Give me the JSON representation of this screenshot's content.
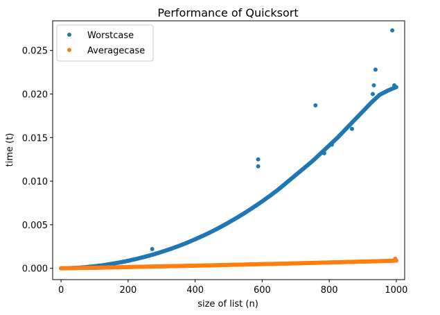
{
  "chart_data": {
    "type": "scatter",
    "title": "Performance of Quicksort",
    "xlabel": "size of list (n)",
    "ylabel": "time (t)",
    "xlim": [
      -25,
      1025
    ],
    "ylim": [
      -0.0013,
      0.0284
    ],
    "x_ticks": [
      0,
      200,
      400,
      600,
      800,
      1000
    ],
    "x_tick_labels": [
      "0",
      "200",
      "400",
      "600",
      "800",
      "1000"
    ],
    "y_ticks": [
      0.0,
      0.005,
      0.01,
      0.015,
      0.02,
      0.025
    ],
    "y_tick_labels": [
      "0.000",
      "0.005",
      "0.010",
      "0.015",
      "0.020",
      "0.025"
    ],
    "grid": false,
    "legend_position": "upper-left",
    "series": [
      {
        "name": "Worstcase",
        "color": "#1f77b4",
        "marker": "circle",
        "x": [
          0,
          25,
          50,
          75,
          100,
          125,
          150,
          175,
          200,
          225,
          250,
          275,
          300,
          325,
          350,
          375,
          400,
          425,
          450,
          475,
          500,
          525,
          550,
          575,
          600,
          625,
          650,
          675,
          700,
          725,
          750,
          775,
          800,
          825,
          850,
          875,
          900,
          925,
          950,
          975,
          1000
        ],
        "y": [
          0.0,
          2e-05,
          6e-05,
          0.00013,
          0.00023,
          0.00035,
          0.0005,
          0.00067,
          0.00086,
          0.00108,
          0.00132,
          0.00158,
          0.00188,
          0.0022,
          0.00254,
          0.00292,
          0.00333,
          0.00376,
          0.00422,
          0.00472,
          0.00525,
          0.00581,
          0.0064,
          0.00703,
          0.00768,
          0.00837,
          0.0091,
          0.0099,
          0.0107,
          0.0115,
          0.0123,
          0.0132,
          0.0141,
          0.015,
          0.016,
          0.017,
          0.018,
          0.019,
          0.0199,
          0.0204,
          0.0208
        ],
        "outliers": [
          {
            "x": 272,
            "y": 0.0022
          },
          {
            "x": 588,
            "y": 0.0125
          },
          {
            "x": 588,
            "y": 0.0117
          },
          {
            "x": 759,
            "y": 0.0187
          },
          {
            "x": 785,
            "y": 0.0132
          },
          {
            "x": 808,
            "y": 0.0142
          },
          {
            "x": 868,
            "y": 0.016
          },
          {
            "x": 930,
            "y": 0.02
          },
          {
            "x": 933,
            "y": 0.021
          },
          {
            "x": 938,
            "y": 0.0228
          },
          {
            "x": 988,
            "y": 0.0273
          },
          {
            "x": 994,
            "y": 0.021
          }
        ]
      },
      {
        "name": "Averagecase",
        "color": "#ff7f0e",
        "marker": "circle",
        "x": [
          0,
          50,
          100,
          150,
          200,
          250,
          300,
          350,
          400,
          450,
          500,
          550,
          600,
          650,
          700,
          750,
          800,
          850,
          900,
          950,
          1000
        ],
        "y": [
          0.0,
          3e-05,
          6e-05,
          0.0001,
          0.00014,
          0.00018,
          0.00022,
          0.00026,
          0.0003,
          0.00034,
          0.00039,
          0.00043,
          0.00048,
          0.00052,
          0.00057,
          0.00062,
          0.00067,
          0.00072,
          0.00077,
          0.00082,
          0.00088
        ],
        "outliers": [
          {
            "x": 997,
            "y": 0.0011
          }
        ]
      }
    ]
  }
}
